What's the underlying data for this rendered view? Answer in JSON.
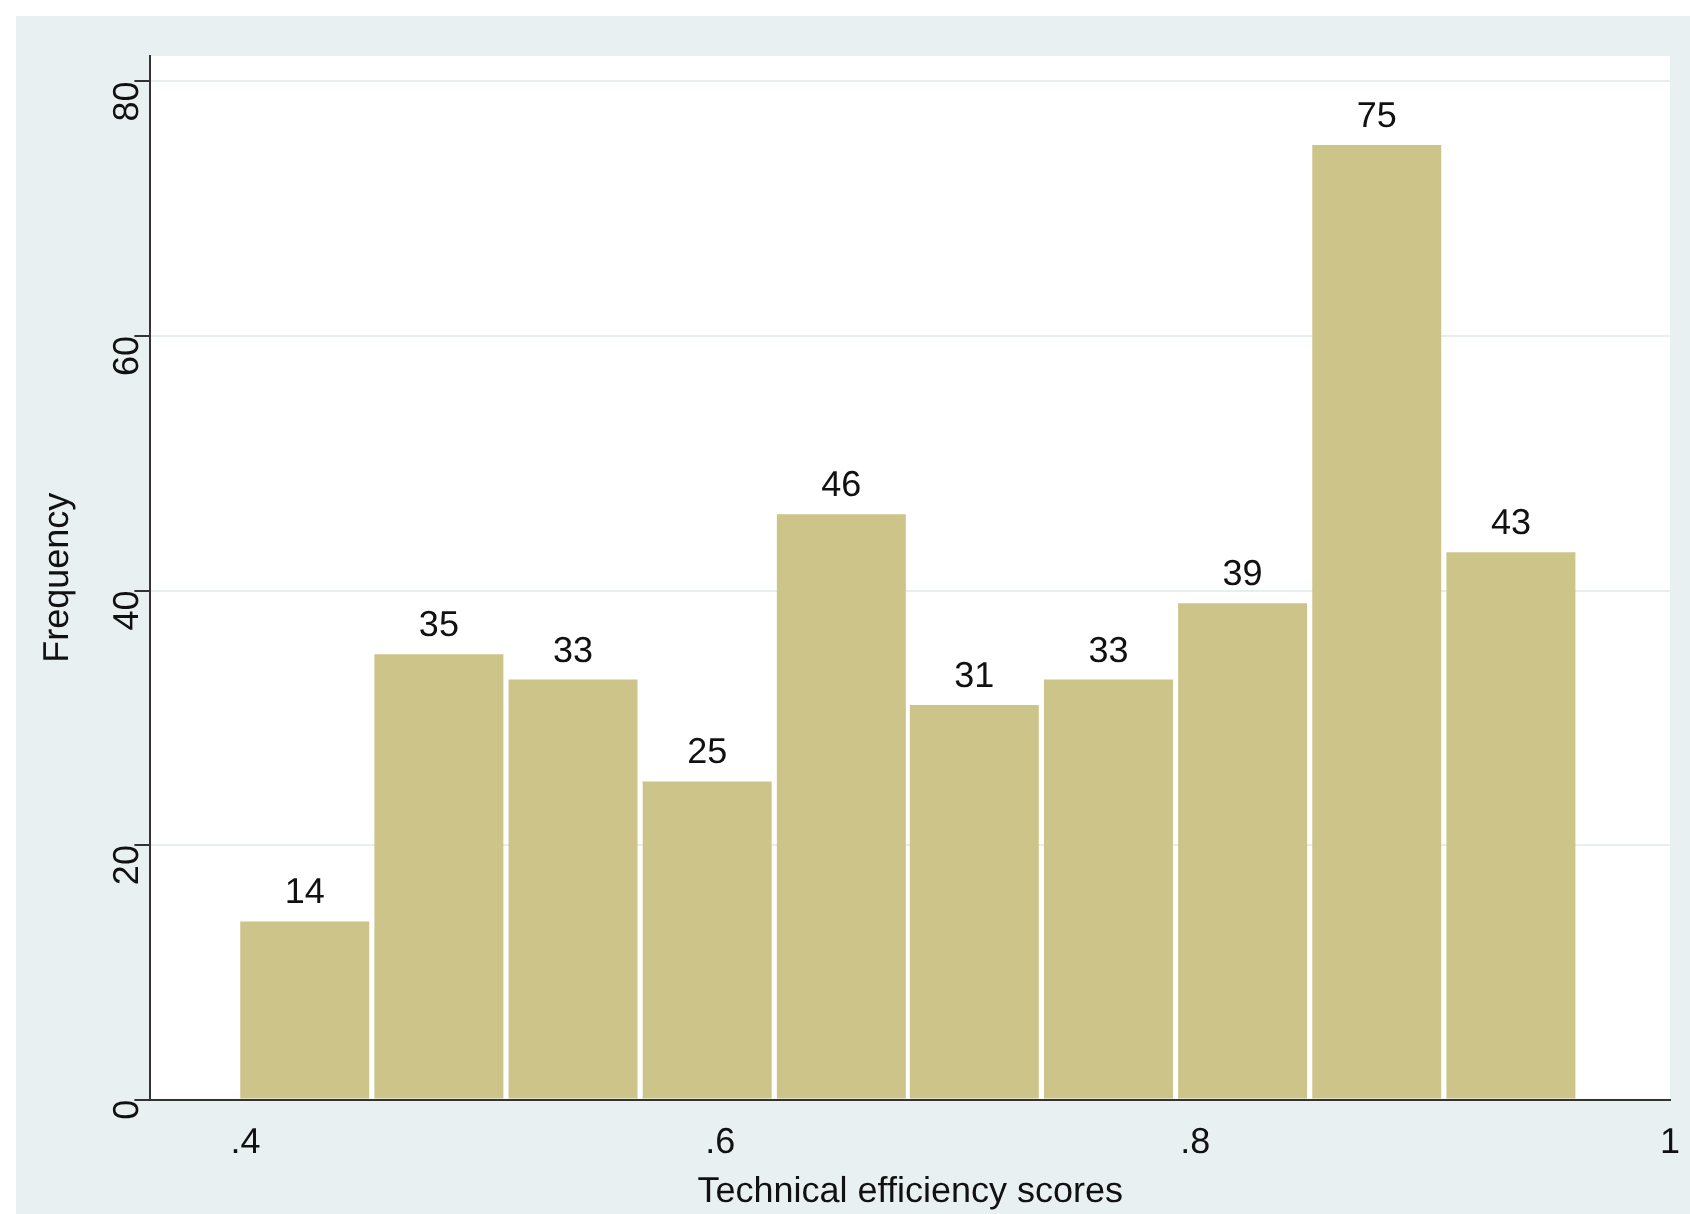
{
  "chart_data": {
    "type": "histogram",
    "xlabel": "Technical efficiency scores",
    "ylabel": "Frequency",
    "bins": [
      0.397,
      0.453,
      0.51,
      0.566,
      0.623,
      0.679,
      0.735,
      0.792,
      0.848,
      0.905,
      0.961
    ],
    "values": [
      14,
      35,
      33,
      25,
      46,
      31,
      33,
      39,
      75,
      43
    ],
    "color": "#ccc488",
    "xlim": [
      0.36,
      1.0
    ],
    "xticks": [
      {
        "value": 0.4,
        "label": ".4"
      },
      {
        "value": 0.6,
        "label": ".6"
      },
      {
        "value": 0.8,
        "label": ".8"
      },
      1
    ],
    "ylim": [
      0,
      82
    ],
    "yticks": [
      0,
      20,
      40,
      60,
      80
    ],
    "grid": "y",
    "legend": false,
    "data_labels": true
  }
}
